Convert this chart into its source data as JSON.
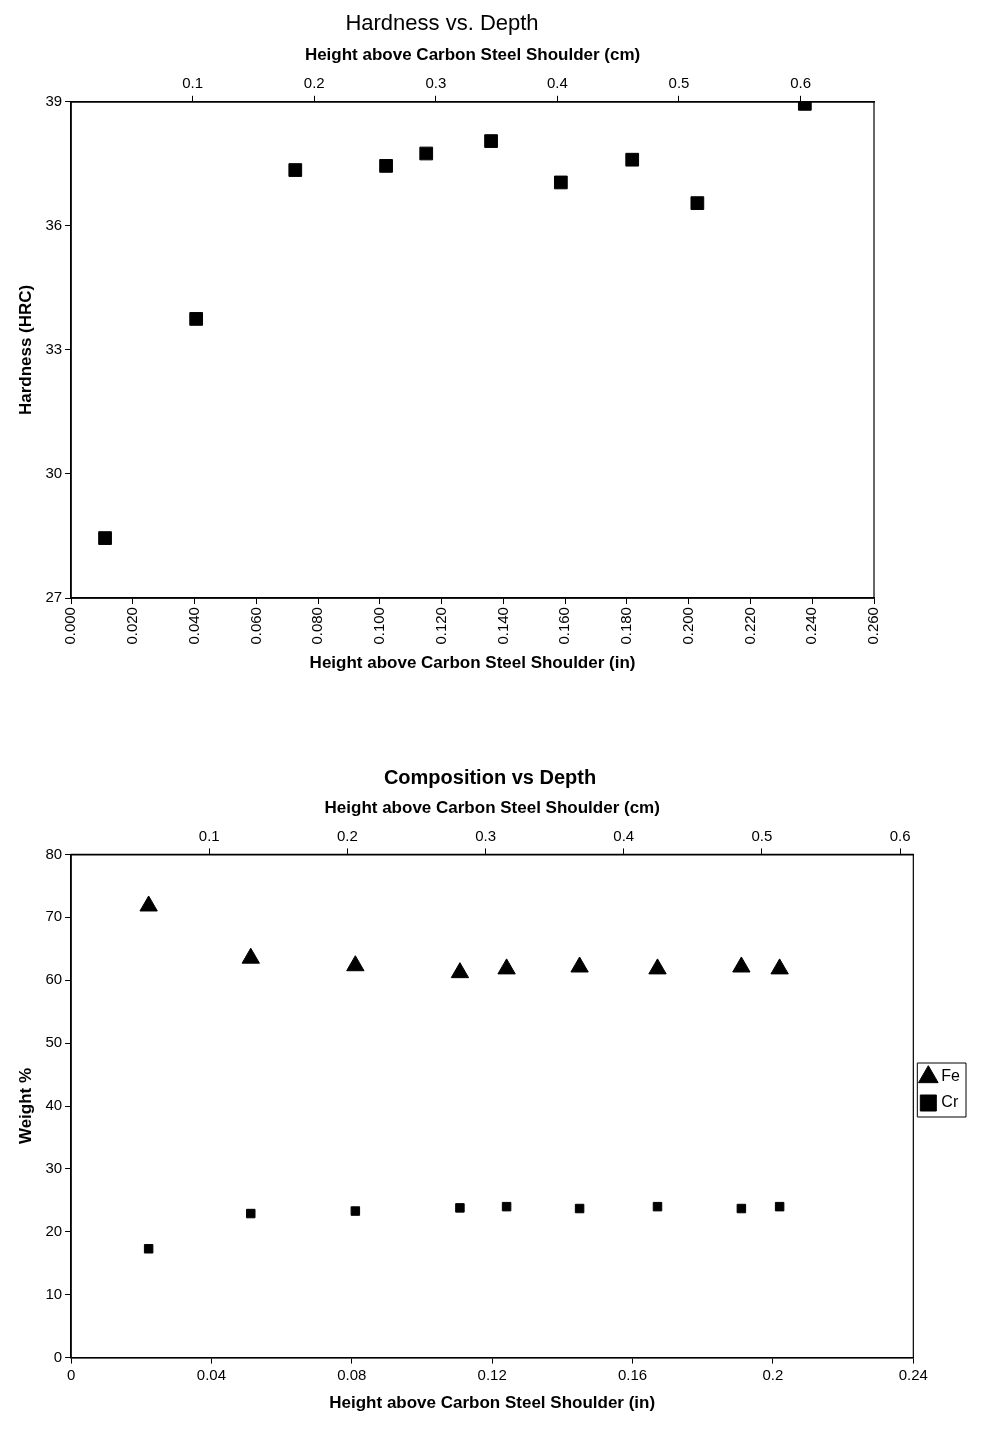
{
  "chart_data": [
    {
      "type": "scatter",
      "title": "Hardness vs. Depth",
      "x2label": "Height above Carbon Steel Shoulder (cm)",
      "xlabel": "Height above Carbon Steel Shoulder (in)",
      "ylabel": "Hardness (HRC)",
      "x": [
        0.011,
        0.0405,
        0.0726,
        0.102,
        0.115,
        0.136,
        0.1586,
        0.1817,
        0.2028,
        0.2376
      ],
      "values": [
        28.45,
        33.75,
        37.35,
        37.45,
        37.75,
        38.05,
        37.05,
        37.6,
        36.55,
        38.95
      ],
      "color": "#000000",
      "marker": "square",
      "xlim": [
        0,
        0.26
      ],
      "xticks": [
        {
          "value": 0,
          "label": "0.000"
        },
        {
          "value": 0.02,
          "label": "0.020"
        },
        {
          "value": 0.04,
          "label": "0.040"
        },
        {
          "value": 0.06,
          "label": "0.060"
        },
        {
          "value": 0.08,
          "label": "0.080"
        },
        {
          "value": 0.1,
          "label": "0.100"
        },
        {
          "value": 0.12,
          "label": "0.120"
        },
        {
          "value": 0.14,
          "label": "0.140"
        },
        {
          "value": 0.16,
          "label": "0.160"
        },
        {
          "value": 0.18,
          "label": "0.180"
        },
        {
          "value": 0.2,
          "label": "0.200"
        },
        {
          "value": 0.22,
          "label": "0.220"
        },
        {
          "value": 0.24,
          "label": "0.240"
        },
        {
          "value": 0.26,
          "label": "0.260"
        }
      ],
      "x2lim": [
        0,
        0.6604
      ],
      "x2ticks": [
        0.1,
        0.2,
        0.3,
        0.4,
        0.5,
        0.6
      ],
      "ylim": [
        27,
        39
      ],
      "yticks": [
        27,
        30,
        33,
        36,
        39
      ],
      "grid": false,
      "legend": false
    },
    {
      "type": "scatter",
      "title": "Composition vs Depth",
      "x2label": "Height above Carbon Steel Shoulder (cm)",
      "xlabel": "Height above Carbon Steel Shoulder (in)",
      "ylabel": "Weight %",
      "x": [
        0.0221,
        0.0512,
        0.081,
        0.1108,
        0.1241,
        0.1449,
        0.1671,
        0.191,
        0.2019
      ],
      "series": [
        {
          "name": "Fe",
          "color": "#000000",
          "marker": "triangle",
          "values": [
            71.8,
            63.5,
            62.3,
            61.2,
            61.8,
            62.1,
            61.8,
            62.1,
            61.8
          ]
        },
        {
          "name": "Cr",
          "color": "#000000",
          "marker": "square",
          "values": [
            17.3,
            22.9,
            23.3,
            23.8,
            24.0,
            23.7,
            24.0,
            23.7,
            24.0
          ]
        }
      ],
      "xlim": [
        0,
        0.24
      ],
      "xticks": [
        0,
        0.04,
        0.08,
        0.12,
        0.16,
        0.2,
        0.24
      ],
      "x2lim": [
        0,
        0.6096
      ],
      "x2ticks": [
        0.1,
        0.2,
        0.3,
        0.4,
        0.5,
        0.6
      ],
      "ylim": [
        0,
        80
      ],
      "yticks": [
        0,
        10,
        20,
        30,
        40,
        50,
        60,
        70,
        80
      ],
      "grid": false,
      "legend": "right"
    }
  ]
}
